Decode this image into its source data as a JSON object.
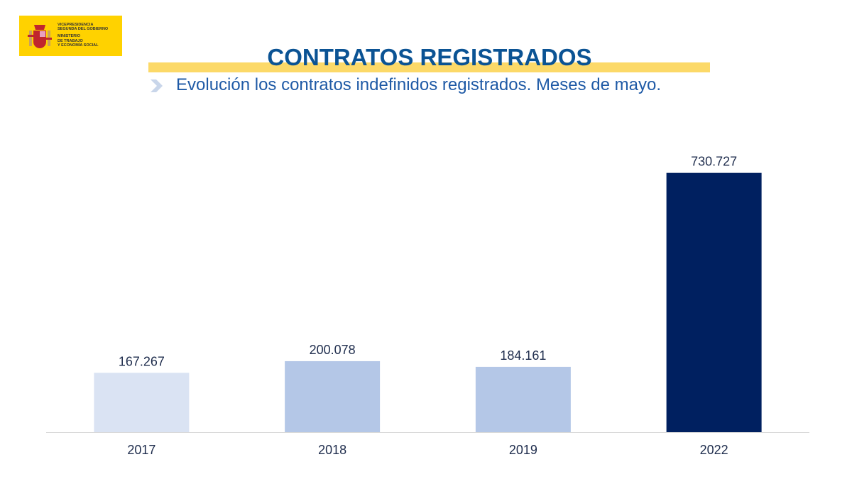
{
  "logo": {
    "line1": "VICEPRESIDENCIA",
    "line2": "SEGUNDA DEL GOBIERNO",
    "line3": "MINISTERIO",
    "line4": "DE TRABAJO",
    "line5": "Y ECONOMÍA SOCIAL"
  },
  "header": {
    "title": "CONTRATOS REGISTRADOS",
    "subtitle": "Evolución los contratos indefinidos registrados. Meses de mayo."
  },
  "colors": {
    "title": "#0b5394",
    "accent": "#fcd968"
  },
  "chart_data": {
    "type": "bar",
    "title": "Evolución los contratos indefinidos registrados. Meses de mayo.",
    "categories": [
      "2017",
      "2018",
      "2019",
      "2022"
    ],
    "values": [
      167267,
      200078,
      184161,
      730727
    ],
    "labels": [
      "167.267",
      "200.078",
      "184.161",
      "730.727"
    ],
    "colors": [
      "#dae3f3",
      "#b4c7e7",
      "#b4c7e7",
      "#002060"
    ],
    "xlabel": "",
    "ylabel": "",
    "ylim": [
      0,
      800000
    ],
    "grid": false,
    "legend": "none"
  }
}
